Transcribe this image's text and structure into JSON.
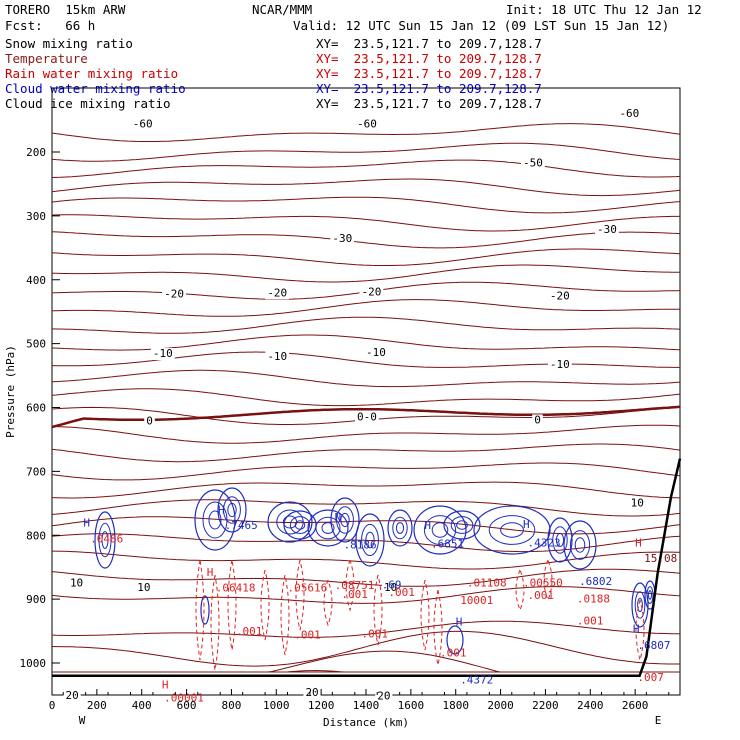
{
  "header": {
    "model": "TORERO  15km ARW",
    "center": "NCAR/MMM",
    "init": "Init: 18 UTC Thu 12 Jan 12",
    "fcst": "Fcst:   66 h",
    "valid": "Valid: 12 UTC Sun 15 Jan 12 (09 LST Sun 15 Jan 12)"
  },
  "legend": [
    {
      "name": "Snow mixing ratio",
      "xy": "XY=  23.5,121.7 to 209.7,128.7",
      "color": "#000000"
    },
    {
      "name": "Temperature",
      "xy": "XY=  23.5,121.7 to 209.7,128.7",
      "color": "#cc0000"
    },
    {
      "name": "Rain water mixing ratio",
      "xy": "XY=  23.5,121.7 to 209.7,128.7",
      "color": "#cc0000"
    },
    {
      "name": "Cloud water mixing ratio",
      "xy": "XY=  23.5,121.7 to 209.7,128.7",
      "color": "#0000cc"
    },
    {
      "name": "Cloud ice mixing ratio",
      "xy": "XY=  23.5,121.7 to 209.7,128.7",
      "color": "#000000"
    }
  ],
  "colors": {
    "temperature": "#7a1010",
    "rain": "#dd2222",
    "cloud_water": "#1f2dbf",
    "terrain": "#000000"
  },
  "chart_data": {
    "type": "line",
    "xlabel": "Distance (km)",
    "ylabel": "Pressure (hPa)",
    "xlim": [
      0,
      2800
    ],
    "ylim": [
      1050,
      100
    ],
    "x_ticks": [
      0,
      200,
      400,
      600,
      800,
      1000,
      1200,
      1400,
      1600,
      1800,
      2000,
      2200,
      2400,
      2600
    ],
    "y_ticks": [
      200,
      300,
      400,
      500,
      600,
      700,
      800,
      900,
      1000
    ],
    "x_ends": {
      "left": "W",
      "right": "E"
    },
    "isotherm_labels": [
      {
        "x": 360,
        "p": 162,
        "text": "-60"
      },
      {
        "x": 1360,
        "p": 162,
        "text": "-60"
      },
      {
        "x": 2530,
        "p": 145,
        "text": "-60"
      },
      {
        "x": 2100,
        "p": 223,
        "text": "-50"
      },
      {
        "x": 1250,
        "p": 341,
        "text": "-30"
      },
      {
        "x": 2430,
        "p": 327,
        "text": "-30"
      },
      {
        "x": 500,
        "p": 428,
        "text": "-20"
      },
      {
        "x": 960,
        "p": 426,
        "text": "-20"
      },
      {
        "x": 1380,
        "p": 425,
        "text": "-20"
      },
      {
        "x": 2220,
        "p": 431,
        "text": "-20"
      },
      {
        "x": 450,
        "p": 521,
        "text": "-10"
      },
      {
        "x": 960,
        "p": 526,
        "text": "-10"
      },
      {
        "x": 1400,
        "p": 519,
        "text": "-10"
      },
      {
        "x": 2220,
        "p": 538,
        "text": "-10"
      },
      {
        "x": 420,
        "p": 627,
        "text": "0"
      },
      {
        "x": 1360,
        "p": 620,
        "text": "0-0"
      },
      {
        "x": 2150,
        "p": 625,
        "text": "0"
      },
      {
        "x": 80,
        "p": 880,
        "text": "10"
      },
      {
        "x": 380,
        "p": 887,
        "text": "10"
      },
      {
        "x": 1480,
        "p": 887,
        "text": "10"
      },
      {
        "x": 2580,
        "p": 755,
        "text": "10"
      },
      {
        "x": 60,
        "p": 1056,
        "text": "20"
      },
      {
        "x": 1130,
        "p": 1052,
        "text": "20"
      },
      {
        "x": 1450,
        "p": 1057,
        "text": "20"
      }
    ],
    "extrema_labels": [
      {
        "x": 140,
        "p": 786,
        "text": "H",
        "series": "cloud_water"
      },
      {
        "x": 170,
        "p": 811,
        "text": ".0486",
        "series": "rain"
      },
      {
        "x": 740,
        "p": 766,
        "text": "H",
        "series": "cloud_water"
      },
      {
        "x": 770,
        "p": 790,
        "text": ".7465",
        "series": "cloud_water"
      },
      {
        "x": 690,
        "p": 864,
        "text": "H",
        "series": "rain"
      },
      {
        "x": 730,
        "p": 888,
        "text": ".06418",
        "series": "rain"
      },
      {
        "x": 1050,
        "p": 888,
        "text": ".05616",
        "series": "rain"
      },
      {
        "x": 1300,
        "p": 821,
        "text": ".8186",
        "series": "cloud_water"
      },
      {
        "x": 1260,
        "p": 778,
        "text": "N",
        "series": "cloud_water"
      },
      {
        "x": 1260,
        "p": 884,
        "text": ".08751",
        "series": "rain"
      },
      {
        "x": 1470,
        "p": 883,
        "text": ".69",
        "series": "cloud_water"
      },
      {
        "x": 1690,
        "p": 819,
        "text": ".6851",
        "series": "cloud_water"
      },
      {
        "x": 1660,
        "p": 790,
        "text": "H",
        "series": "cloud_water"
      },
      {
        "x": 1850,
        "p": 880,
        "text": ".01108",
        "series": "rain"
      },
      {
        "x": 2120,
        "p": 818,
        "text": ".4323",
        "series": "cloud_water"
      },
      {
        "x": 2100,
        "p": 789,
        "text": "H",
        "series": "cloud_water"
      },
      {
        "x": 2100,
        "p": 880,
        "text": ".00550",
        "series": "rain"
      },
      {
        "x": 2350,
        "p": 878,
        "text": ".6802",
        "series": "cloud_water"
      },
      {
        "x": 2340,
        "p": 905,
        "text": ".0188",
        "series": "rain"
      },
      {
        "x": 2600,
        "p": 818,
        "text": "H",
        "series": "rain"
      },
      {
        "x": 2640,
        "p": 842,
        "text": "15.08",
        "series": "temperature"
      },
      {
        "x": 2590,
        "p": 952,
        "text": "H",
        "series": "cloud_water"
      },
      {
        "x": 2610,
        "p": 978,
        "text": ".6807",
        "series": "cloud_water"
      },
      {
        "x": 2610,
        "p": 1028,
        "text": ".007",
        "series": "rain"
      },
      {
        "x": 1820,
        "p": 1032,
        "text": ".4372",
        "series": "cloud_water"
      },
      {
        "x": 1800,
        "p": 941,
        "text": "H",
        "series": "cloud_water"
      },
      {
        "x": 1820,
        "p": 908,
        "text": "10001",
        "series": "rain"
      },
      {
        "x": 1290,
        "p": 898,
        "text": ".001",
        "series": "rain"
      },
      {
        "x": 820,
        "p": 956,
        "text": ".001",
        "series": "rain"
      },
      {
        "x": 1080,
        "p": 962,
        "text": ".001",
        "series": "rain"
      },
      {
        "x": 1380,
        "p": 960,
        "text": ".001",
        "series": "rain"
      },
      {
        "x": 1500,
        "p": 895,
        "text": ".001",
        "series": "rain"
      },
      {
        "x": 2120,
        "p": 900,
        "text": ".001",
        "series": "rain"
      },
      {
        "x": 2340,
        "p": 940,
        "text": ".001",
        "series": "rain"
      },
      {
        "x": 1730,
        "p": 990,
        "text": ".001",
        "series": "rain"
      },
      {
        "x": 490,
        "p": 1040,
        "text": "H",
        "series": "rain"
      },
      {
        "x": 500,
        "p": 1060,
        "text": ".00001",
        "series": "rain"
      }
    ],
    "terrain": [
      [
        0,
        1020
      ],
      [
        2620,
        1020
      ],
      [
        2650,
        990
      ],
      [
        2700,
        860
      ],
      [
        2760,
        740
      ],
      [
        2800,
        680
      ]
    ]
  }
}
